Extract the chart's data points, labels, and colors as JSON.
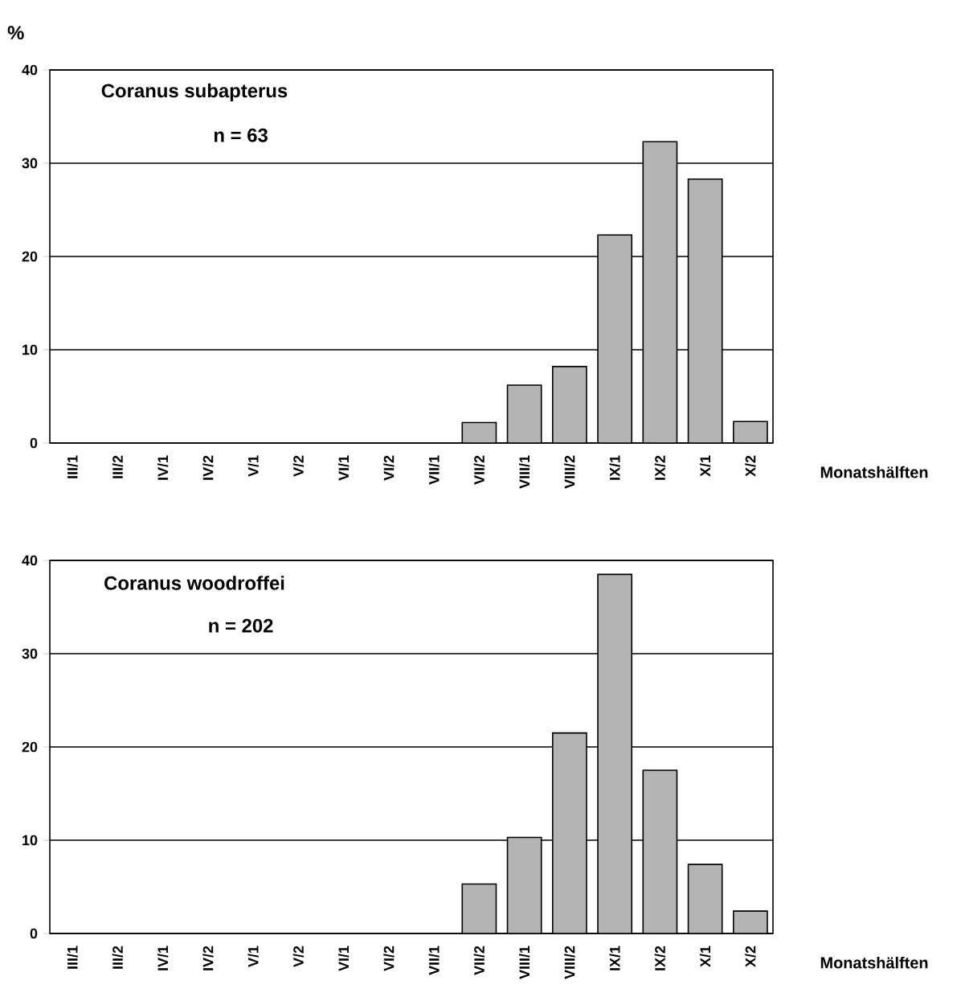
{
  "chart_data": [
    {
      "type": "bar",
      "title": "Coranus subapterus",
      "subtitle": "n = 63",
      "ylabel": "%",
      "xlabel": "Monatshälften",
      "categories": [
        "III/1",
        "III/2",
        "IV/1",
        "IV/2",
        "V/1",
        "V/2",
        "VI/1",
        "VI/2",
        "VII/1",
        "VII/2",
        "VIII/1",
        "VIII/2",
        "IX/1",
        "IX/2",
        "X/1",
        "X/2"
      ],
      "values": [
        0,
        0,
        0,
        0,
        0,
        0,
        0,
        0,
        0,
        2.2,
        6.2,
        8.2,
        22.3,
        32.3,
        28.3,
        2.3
      ],
      "color": "#b4b4b4",
      "ylim": [
        0,
        40
      ],
      "yticks": [
        0,
        10,
        20,
        30,
        40
      ],
      "grid": "y"
    },
    {
      "type": "bar",
      "title": "Coranus woodroffei",
      "subtitle": "n = 202",
      "xlabel": "Monatshälften",
      "categories": [
        "III/1",
        "III/2",
        "IV/1",
        "IV/2",
        "V/1",
        "V/2",
        "VI/1",
        "VI/2",
        "VII/1",
        "VII/2",
        "VIII/1",
        "VIII/2",
        "IX/1",
        "IX/2",
        "X/1",
        "X/2"
      ],
      "values": [
        0,
        0,
        0,
        0,
        0,
        0,
        0,
        0,
        0,
        5.3,
        10.3,
        21.5,
        38.5,
        17.5,
        7.4,
        2.4
      ],
      "color": "#b4b4b4",
      "ylim": [
        0,
        40
      ],
      "yticks": [
        0,
        10,
        20,
        30,
        40
      ],
      "grid": "y"
    }
  ]
}
